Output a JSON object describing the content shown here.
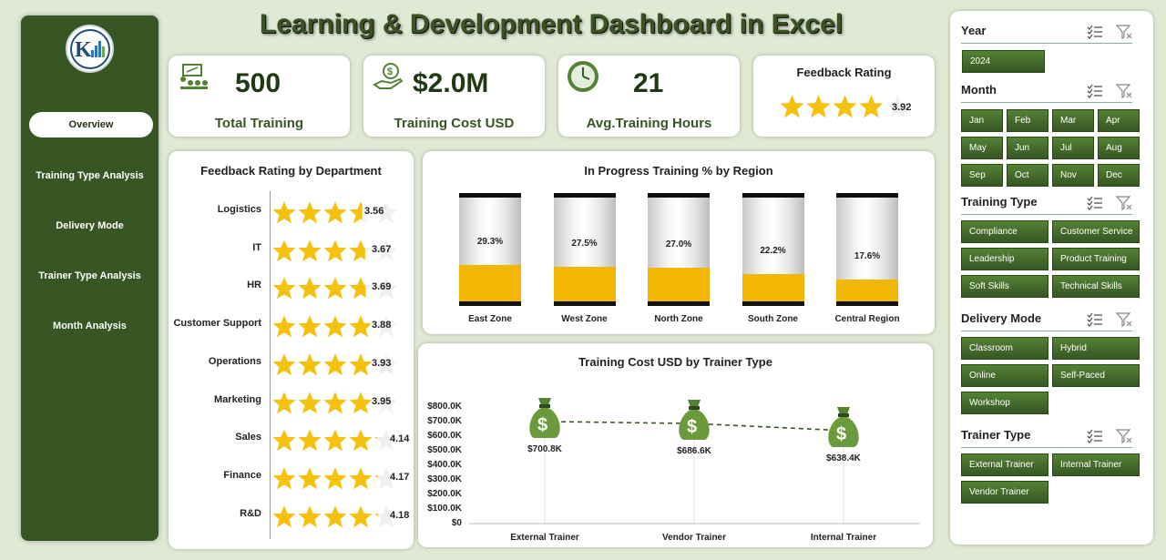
{
  "title": "Learning & Development Dashboard in Excel",
  "sidebar": {
    "items": [
      {
        "label": "Overview",
        "active": true
      },
      {
        "label": "Training Type Analysis"
      },
      {
        "label": "Delivery Mode"
      },
      {
        "label": "Trainer Type Analysis"
      },
      {
        "label": "Month Analysis"
      }
    ]
  },
  "kpis": {
    "total_training": {
      "value": "500",
      "label": "Total Training"
    },
    "training_cost": {
      "value": "$2.0M",
      "label": "Training Cost USD"
    },
    "avg_hours": {
      "value": "21",
      "label": "Avg.Training Hours"
    },
    "feedback": {
      "label": "Feedback Rating",
      "value": "3.92",
      "rating": 3.92
    }
  },
  "dept_panel": {
    "title": "Feedback Rating by Department",
    "rows": [
      {
        "name": "Logistics",
        "value": "3.56",
        "rating": 3.56
      },
      {
        "name": "IT",
        "value": "3.67",
        "rating": 3.67
      },
      {
        "name": "HR",
        "value": "3.69",
        "rating": 3.69
      },
      {
        "name": "Customer Support",
        "value": "3.88",
        "rating": 3.88
      },
      {
        "name": "Operations",
        "value": "3.93",
        "rating": 3.93
      },
      {
        "name": "Marketing",
        "value": "3.95",
        "rating": 3.95
      },
      {
        "name": "Sales",
        "value": "4.14",
        "rating": 4.14
      },
      {
        "name": "Finance",
        "value": "4.17",
        "rating": 4.17
      },
      {
        "name": "R&D",
        "value": "4.18",
        "rating": 4.18
      }
    ]
  },
  "region_panel": {
    "title": "In Progress Training % by Region",
    "regions": [
      {
        "name": "East Zone",
        "label": "29.3%",
        "pct": 29.3
      },
      {
        "name": "West Zone",
        "label": "27.5%",
        "pct": 27.5
      },
      {
        "name": "North Zone",
        "label": "27.0%",
        "pct": 27.0
      },
      {
        "name": "South Zone",
        "label": "22.2%",
        "pct": 22.2
      },
      {
        "name": "Central Region",
        "label": "17.6%",
        "pct": 17.6
      }
    ]
  },
  "chart_data": {
    "type": "line",
    "title": "Training Cost USD by Trainer Type",
    "categories": [
      "External Trainer",
      "Vendor Trainer",
      "Internal Trainer"
    ],
    "values": [
      700.8,
      686.6,
      638.4
    ],
    "data_labels": [
      "$700.8K",
      "$686.6K",
      "$638.4K"
    ],
    "ylim": [
      0,
      800
    ],
    "yticks": [
      "$800.0K",
      "$700.0K",
      "$600.0K",
      "$500.0K",
      "$400.0K",
      "$300.0K",
      "$200.0K",
      "$100.0K",
      "$0"
    ]
  },
  "slicers": {
    "year": {
      "title": "Year",
      "options": [
        "2024"
      ]
    },
    "month": {
      "title": "Month",
      "options": [
        "Jan",
        "Feb",
        "Mar",
        "Apr",
        "May",
        "Jun",
        "Jul",
        "Aug",
        "Sep",
        "Oct",
        "Nov",
        "Dec"
      ]
    },
    "training_type": {
      "title": "Training Type",
      "options": [
        "Compliance",
        "Customer Service",
        "Leadership",
        "Product Training",
        "Soft Skills",
        "Technical Skills"
      ]
    },
    "delivery_mode": {
      "title": "Delivery Mode",
      "options": [
        "Classroom",
        "Hybrid",
        "Online",
        "Self-Paced",
        "Workshop"
      ]
    },
    "trainer_type": {
      "title": "Trainer Type",
      "options": [
        "External Trainer",
        "Internal Trainer",
        "Vendor Trainer"
      ]
    }
  },
  "colors": {
    "primary": "#375623",
    "accent": "#f2b705",
    "star": "#f4c20d"
  }
}
